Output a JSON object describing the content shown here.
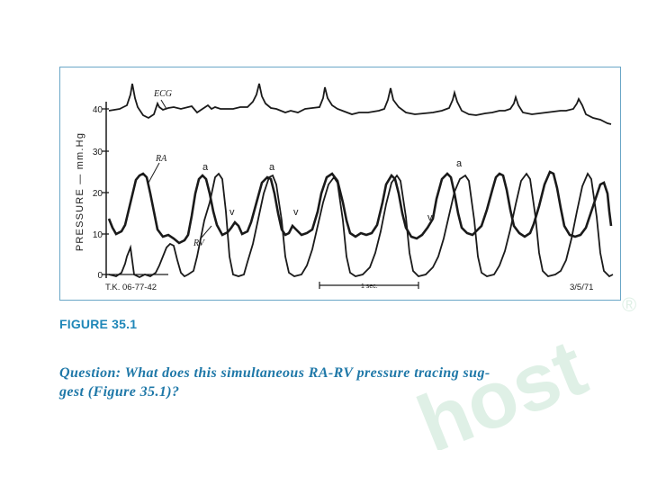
{
  "figure": {
    "caption": "FIGURE 35.1",
    "y_axis_label": "PRESSURE — mm.Hg",
    "y_ticks": [
      "40",
      "30",
      "20",
      "10",
      "0"
    ],
    "trace_labels": {
      "ecg": "ECG",
      "ra": "RA",
      "rv": "RV"
    },
    "wave_labels": {
      "a": "a",
      "v": "v"
    },
    "patient_id": "T.K. 06-77-42",
    "time_scale": "1 sec.",
    "date": "3/5/71"
  },
  "question": {
    "line1": "Question: What does this simultaneous RA-RV pressure tracing sug-",
    "line2": "gest (Figure 35.1)?"
  },
  "watermark": {
    "text": "host",
    "registered_mark": "®"
  },
  "colors": {
    "frame_border": "#6aa6c7",
    "caption": "#1f87b8",
    "question": "#1f78a8",
    "trace": "#1a1a1a",
    "watermark": "#dff0e6"
  }
}
